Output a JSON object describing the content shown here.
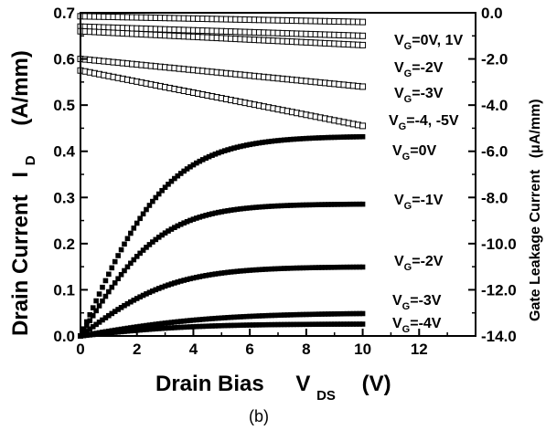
{
  "chart_data": {
    "type": "scatter",
    "caption": "(b)",
    "x_axis": {
      "label_main": "Drain Bias",
      "label_symbol": "V",
      "label_sub": "DS",
      "label_unit": "(V)",
      "range": [
        0,
        14
      ],
      "ticks": [
        0,
        2,
        4,
        6,
        8,
        10,
        12
      ]
    },
    "y_left": {
      "label_main": "Drain Current",
      "label_symbol": "I",
      "label_sub": "D",
      "label_unit": "(A/mm)",
      "range": [
        0.0,
        0.7
      ],
      "ticks": [
        "0.0",
        "0.1",
        "0.2",
        "0.3",
        "0.4",
        "0.5",
        "0.6",
        "0.7"
      ]
    },
    "y_right": {
      "label": "Gate Leakage Current",
      "label_unit": "(μA/mm)",
      "range": [
        -14.0,
        0.0
      ],
      "ticks": [
        "-14.0",
        "-12.0",
        "-10.0",
        "-8.0",
        "-6.0",
        "-4.0",
        "-2.0",
        "0.0"
      ]
    },
    "drain_series": [
      {
        "name": "VG=0V",
        "label_pre": "V",
        "label_sub": "G",
        "label_post": "=0V",
        "isat": 0.433,
        "vknee": 3.6
      },
      {
        "name": "VG=-1V",
        "label_pre": "V",
        "label_sub": "G",
        "label_post": "=-1V",
        "isat": 0.286,
        "vknee": 3.3
      },
      {
        "name": "VG=-2V",
        "label_pre": "V",
        "label_sub": "G",
        "label_post": "=-2V",
        "isat": 0.15,
        "vknee": 3.8
      },
      {
        "name": "VG=-3V",
        "label_pre": "V",
        "label_sub": "G",
        "label_post": "=-3V",
        "isat": 0.05,
        "vknee": 5.5
      },
      {
        "name": "VG=-4V",
        "label_pre": "V",
        "label_sub": "G",
        "label_post": "=-4V",
        "isat": 0.026,
        "vknee": 4.5
      }
    ],
    "gate_series": [
      {
        "name": "VG=0V, 1V",
        "label_pre": "V",
        "label_sub": "G",
        "label_post": "=0V, 1V",
        "start": -0.15,
        "end": -0.4
      },
      {
        "name": "",
        "start": -0.6,
        "end": -1.0
      },
      {
        "name": "VG=-2V",
        "label_pre": "V",
        "label_sub": "G",
        "label_post": "=-2V",
        "start": -0.8,
        "end": -1.4
      },
      {
        "name": "VG=-3V",
        "label_pre": "V",
        "label_sub": "G",
        "label_post": "=-3V",
        "start": -2.0,
        "end": -3.2
      },
      {
        "name": "VG=-4, -5V",
        "label_pre": "V",
        "label_sub": "G",
        "label_post": "=-4, -5V",
        "start": -2.5,
        "end": -4.9
      }
    ]
  }
}
